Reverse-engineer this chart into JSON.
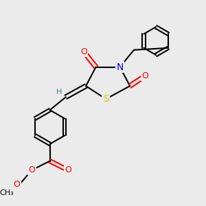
{
  "bg_color": "#ebebeb",
  "fig_size": [
    3.0,
    3.0
  ],
  "dpi": 100,
  "bond_color": "#000000",
  "bond_lw": 1.5,
  "atom_colors": {
    "O": "#ff0000",
    "N": "#0000ff",
    "S": "#cccc00",
    "C": "#000000",
    "H": "#408080"
  },
  "font_size": 9
}
